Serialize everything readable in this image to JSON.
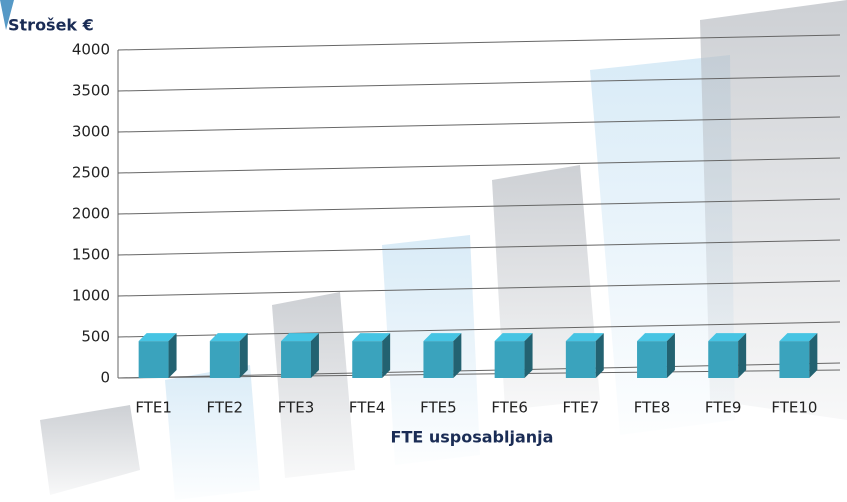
{
  "chart_data": {
    "type": "bar",
    "title": "Strošek €",
    "x_label": "FTE usposabljanja",
    "categories": [
      "FTE1",
      "FTE2",
      "FTE3",
      "FTE4",
      "FTE5",
      "FTE6",
      "FTE7",
      "FTE8",
      "FTE9",
      "FTE10"
    ],
    "values": [
      450,
      450,
      450,
      450,
      450,
      450,
      450,
      450,
      450,
      450
    ],
    "color": "#3aa3bd",
    "ylim": [
      0,
      4000
    ],
    "yticks": [
      0,
      500,
      1000,
      1500,
      2000,
      2500,
      3000,
      3500,
      4000
    ],
    "grid": true
  }
}
